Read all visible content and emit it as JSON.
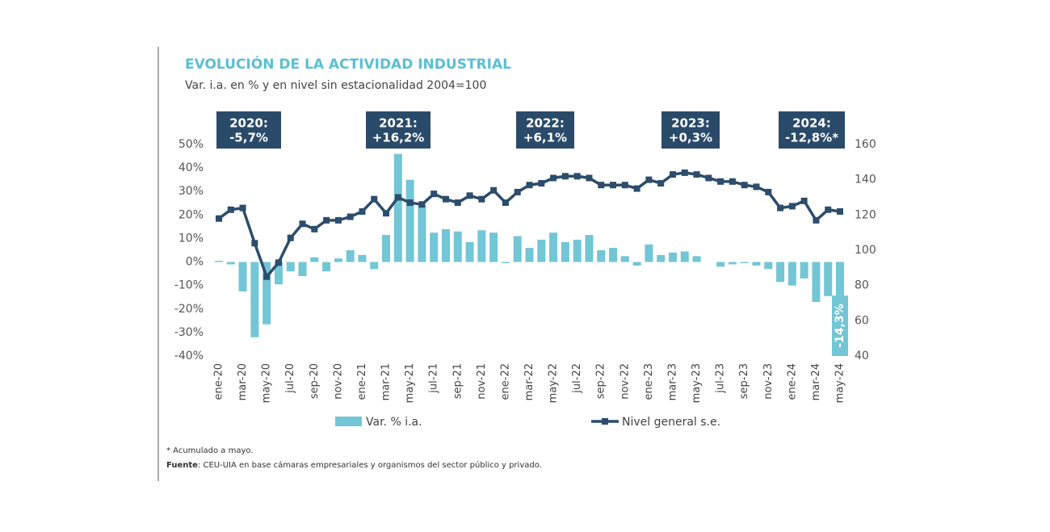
{
  "chart_data": {
    "type": "bar",
    "title": "EVOLUCIÓN DE LA ACTIVIDAD INDUSTRIAL",
    "subtitle": "Var. i.a. en % y en nivel sin estacionalidad 2004=100",
    "categories": [
      "ene-20",
      null,
      "mar-20",
      null,
      "may-20",
      null,
      "jul-20",
      null,
      "sep-20",
      null,
      "nov-20",
      null,
      "ene-21",
      null,
      "mar-21",
      null,
      "may-21",
      null,
      "jul-21",
      null,
      "sep-21",
      null,
      "nov-21",
      null,
      "ene-22",
      null,
      "mar-22",
      null,
      "may-22",
      null,
      "jul-22",
      null,
      "sep-22",
      null,
      "nov-22",
      null,
      "ene-23",
      null,
      "mar-23",
      null,
      "may-23",
      null,
      "jul-23",
      null,
      "sep-23",
      null,
      "nov-23",
      null,
      "ene-24",
      null,
      "mar-24",
      null,
      "may-24"
    ],
    "series": [
      {
        "name": "Var. % i.a.",
        "type": "bar",
        "color": "#72c6d5",
        "values": [
          0.5,
          -1,
          -12.5,
          -32,
          -26.5,
          -9.5,
          -4,
          -6,
          2,
          -4,
          1.5,
          5,
          3,
          -3,
          11.5,
          46,
          35,
          24,
          12.5,
          14,
          13,
          8.5,
          13.5,
          12.5,
          -0.5,
          11,
          6,
          9.5,
          12.5,
          8.5,
          9.5,
          11.5,
          5,
          6,
          2.5,
          -1.5,
          7.5,
          3,
          4,
          4.5,
          2.5,
          0,
          -2,
          -1,
          -0.5,
          -1.5,
          -3,
          -8.5,
          -10,
          -7,
          -17,
          -14.5,
          -14.3
        ],
        "value_labels": [
          null,
          null,
          null,
          null,
          null,
          null,
          null,
          null,
          null,
          null,
          null,
          null,
          null,
          null,
          null,
          null,
          null,
          null,
          null,
          null,
          null,
          null,
          null,
          null,
          null,
          null,
          null,
          null,
          null,
          null,
          null,
          null,
          null,
          null,
          null,
          null,
          null,
          null,
          null,
          null,
          null,
          null,
          null,
          null,
          null,
          null,
          null,
          null,
          null,
          null,
          null,
          null,
          "-14,3%"
        ]
      },
      {
        "name": "Nivel general s.e.",
        "type": "line",
        "axis": "y2",
        "color": "#2c4d6c",
        "values": [
          118,
          123,
          124,
          104,
          85,
          93,
          107,
          115,
          112,
          117,
          117,
          119,
          122,
          129,
          121,
          130,
          127,
          126,
          132,
          129,
          127,
          131,
          129,
          134,
          127,
          133,
          137,
          138,
          141,
          142,
          142,
          141,
          137,
          137,
          137,
          135,
          140,
          138,
          143,
          144,
          143,
          141,
          139,
          139,
          137,
          136,
          133,
          124,
          125,
          128,
          117,
          123,
          122
        ]
      }
    ],
    "ylim": [
      -40,
      50
    ],
    "yticks": [
      {
        "value": -40,
        "label": "-40%"
      },
      {
        "value": -30,
        "label": "-30%"
      },
      {
        "value": -20,
        "label": "-20%"
      },
      {
        "value": -10,
        "label": "-10%"
      },
      {
        "value": 0,
        "label": "0%"
      },
      {
        "value": 10,
        "label": "10%"
      },
      {
        "value": 20,
        "label": "20%"
      },
      {
        "value": 30,
        "label": "30%"
      },
      {
        "value": 40,
        "label": "40%"
      },
      {
        "value": 50,
        "label": "50%"
      }
    ],
    "y2lim": [
      40,
      160
    ],
    "y2ticks": [
      40,
      60,
      80,
      100,
      120,
      140,
      160
    ],
    "annotations": [
      [
        "2020:",
        "-5,7%"
      ],
      [
        "2021:",
        "+16,2%"
      ],
      [
        "2022:",
        "+6,1%"
      ],
      [
        "2023:",
        "+0,3%"
      ],
      [
        "2024:",
        "-12,8%*"
      ]
    ],
    "note": "* Acumulado a mayo.",
    "source_label": "Fuente",
    "source_text": ": CEU-UIA en base cámaras empresariales y organismos del sector público y privado."
  }
}
